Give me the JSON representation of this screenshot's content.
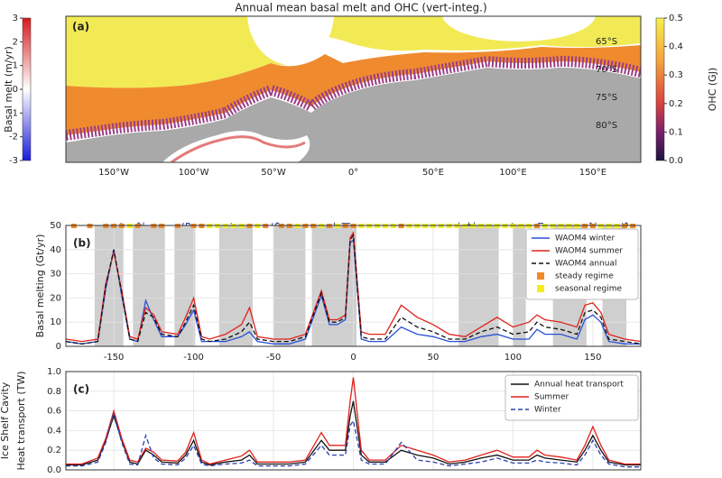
{
  "chart_data": [
    {
      "type": "map",
      "title": "Annual mean basal melt and OHC (vert-integ.)",
      "panel_label": "(a)",
      "xlim": [
        -180,
        180
      ],
      "lon_ticks": [
        {
          "value": -150,
          "label": "150°W"
        },
        {
          "value": -100,
          "label": "100°W"
        },
        {
          "value": -50,
          "label": "50°W"
        },
        {
          "value": 0,
          "label": "0°"
        },
        {
          "value": 50,
          "label": "50°E"
        },
        {
          "value": 100,
          "label": "100°E"
        },
        {
          "value": 150,
          "label": "150°E"
        }
      ],
      "lat_labels": [
        "65°S",
        "70°S",
        "75°S",
        "80°S"
      ],
      "colorbar_left": {
        "label": "Basal melt (m/yr)",
        "lim": [
          -3,
          3
        ],
        "ticks": [
          3,
          2,
          1,
          0,
          -1,
          -2,
          -3
        ]
      },
      "colorbar_right": {
        "label": "OHC (GJ)",
        "lim": [
          0,
          0.5
        ],
        "ticks": [
          0.5,
          0.4,
          0.3,
          0.2,
          0.1,
          {
            "value": 0,
            "label": "0.0"
          }
        ]
      },
      "regions": [
        {
          "lines": [
            "Sulzb."
          ],
          "lon": -147
        },
        {
          "lines": [
            "Getz"
          ],
          "lon": -133
        },
        {
          "lines": [
            "PIG"
          ],
          "lon": -104
        },
        {
          "lines": [
            "Bellings."
          ],
          "lon": -78
        },
        {
          "lines": [
            "FRIS"
          ],
          "lon": -48
        },
        {
          "lines": [
            "Brunt-",
            "Fimbul"
          ],
          "lon": -8
        },
        {
          "lines": [
            "Amery-",
            "West"
          ],
          "lon": 70
        },
        {
          "lines": [
            "Shackl."
          ],
          "lon": 98
        },
        {
          "lines": [
            "Totten"
          ],
          "lon": 117
        },
        {
          "lines": [
            "Mertz"
          ],
          "lon": 150
        },
        {
          "lines": [
            "Ross"
          ],
          "lon": 170
        }
      ]
    },
    {
      "type": "line",
      "panel_label": "(b)",
      "ylabel": "Basal melting (Gt/yr)",
      "xlim": [
        -180,
        180
      ],
      "ylim": [
        0,
        50
      ],
      "xticks": [
        -150,
        -100,
        -50,
        0,
        50,
        100,
        150
      ],
      "yticks": [
        0,
        10,
        20,
        30,
        40,
        50
      ],
      "grid": true,
      "shaded": [
        [
          -162,
          -144
        ],
        [
          -138,
          -118
        ],
        [
          -112,
          -99
        ],
        [
          -84,
          -63
        ],
        [
          -50,
          -30
        ],
        [
          -26,
          2
        ],
        [
          66,
          91
        ],
        [
          100,
          108
        ],
        [
          125,
          146
        ],
        [
          156,
          171
        ]
      ],
      "x": [
        -180,
        -170,
        -160,
        -155,
        -150,
        -145,
        -140,
        -135,
        -130,
        -125,
        -120,
        -110,
        -105,
        -100,
        -95,
        -90,
        -80,
        -70,
        -65,
        -60,
        -50,
        -40,
        -30,
        -20,
        -15,
        -10,
        -5,
        -2,
        0,
        5,
        10,
        20,
        30,
        40,
        50,
        60,
        70,
        80,
        90,
        100,
        110,
        115,
        120,
        130,
        140,
        145,
        150,
        155,
        160,
        170,
        180
      ],
      "series": [
        {
          "name": "WAOM4 winter",
          "color": "#2a4fd6",
          "style": "solid",
          "values": [
            2,
            1,
            2,
            24,
            40,
            21,
            3,
            2,
            19,
            11,
            4,
            4,
            9,
            15,
            2,
            2,
            2,
            4,
            6,
            2,
            1,
            1,
            3,
            21,
            9,
            9,
            11,
            43,
            44,
            3,
            2,
            2,
            8,
            5,
            4,
            2,
            2,
            4,
            5,
            3,
            3,
            7,
            5,
            5,
            3,
            11,
            13,
            10,
            2,
            1,
            1
          ]
        },
        {
          "name": "WAOM4 summer",
          "color": "#e0221c",
          "style": "solid",
          "values": [
            3,
            2,
            3,
            26,
            39,
            23,
            4,
            3,
            16,
            13,
            6,
            5,
            12,
            20,
            4,
            3,
            5,
            9,
            16,
            4,
            3,
            3,
            5,
            23,
            11,
            11,
            13,
            45,
            47,
            6,
            5,
            5,
            17,
            12,
            9,
            5,
            4,
            8,
            12,
            8,
            10,
            13,
            11,
            10,
            8,
            17,
            18,
            14,
            5,
            3,
            2
          ]
        },
        {
          "name": "WAOM4 annual",
          "color": "#111111",
          "style": "dashed",
          "values": [
            2,
            1,
            2,
            25,
            40,
            22,
            3,
            2,
            14,
            12,
            5,
            4,
            10,
            17,
            3,
            2,
            3,
            6,
            10,
            3,
            2,
            2,
            4,
            22,
            10,
            10,
            12,
            44,
            46,
            4,
            3,
            3,
            12,
            8,
            6,
            3,
            3,
            6,
            8,
            5,
            6,
            10,
            8,
            7,
            5,
            14,
            15,
            12,
            3,
            2,
            1
          ]
        }
      ],
      "regimes": [
        {
          "name": "steady regime",
          "color": "#f08a24",
          "x": [
            -175,
            -165,
            -155,
            -150,
            -145,
            -135,
            -125,
            -120,
            -110,
            -100,
            -95,
            -65,
            -55,
            -45,
            -40,
            -30,
            -25,
            -15,
            -5,
            0,
            30,
            115,
            145,
            150,
            170,
            175
          ]
        },
        {
          "name": "seasonal regime",
          "color": "#f2ee1e",
          "x": [
            -140,
            -90,
            -85,
            -80,
            -75,
            -70,
            -60,
            -35,
            -20,
            -10,
            5,
            10,
            15,
            20,
            25,
            35,
            40,
            45,
            50,
            55,
            60,
            65,
            70,
            75,
            80,
            85,
            90,
            95,
            100,
            105,
            110,
            120,
            125,
            130,
            135,
            140,
            155,
            160,
            165
          ]
        }
      ]
    },
    {
      "type": "line",
      "panel_label": "(c)",
      "ylabel_lines": [
        "Ice Shelf Cavity",
        "Heat transport (TW)"
      ],
      "xlim": [
        -180,
        180
      ],
      "ylim": [
        0,
        1
      ],
      "xticks": [
        -150,
        -100,
        -50,
        0,
        50,
        100,
        150
      ],
      "yticks": [
        {
          "value": 0,
          "label": "0.0"
        },
        0.2,
        0.4,
        0.6,
        0.8,
        {
          "value": 1,
          "label": "1.0"
        }
      ],
      "grid": true,
      "x": [
        -180,
        -170,
        -160,
        -155,
        -150,
        -145,
        -140,
        -135,
        -130,
        -125,
        -120,
        -110,
        -105,
        -100,
        -95,
        -90,
        -80,
        -70,
        -65,
        -60,
        -50,
        -40,
        -30,
        -20,
        -15,
        -10,
        -5,
        -2,
        0,
        5,
        10,
        20,
        30,
        40,
        50,
        60,
        70,
        80,
        90,
        100,
        110,
        115,
        120,
        130,
        140,
        145,
        150,
        155,
        160,
        170,
        180
      ],
      "series": [
        {
          "name": "Annual heat transport",
          "color": "#111111",
          "style": "solid",
          "values": [
            0.05,
            0.05,
            0.1,
            0.3,
            0.55,
            0.3,
            0.08,
            0.06,
            0.2,
            0.15,
            0.08,
            0.07,
            0.15,
            0.3,
            0.08,
            0.05,
            0.08,
            0.1,
            0.15,
            0.06,
            0.06,
            0.06,
            0.08,
            0.3,
            0.2,
            0.2,
            0.2,
            0.55,
            0.7,
            0.15,
            0.08,
            0.08,
            0.2,
            0.15,
            0.12,
            0.06,
            0.08,
            0.12,
            0.15,
            0.1,
            0.1,
            0.15,
            0.12,
            0.1,
            0.08,
            0.2,
            0.35,
            0.2,
            0.08,
            0.05,
            0.05
          ]
        },
        {
          "name": "Summer",
          "color": "#e0221c",
          "style": "solid",
          "values": [
            0.06,
            0.06,
            0.12,
            0.32,
            0.6,
            0.32,
            0.1,
            0.08,
            0.22,
            0.18,
            0.1,
            0.09,
            0.18,
            0.38,
            0.1,
            0.06,
            0.1,
            0.14,
            0.2,
            0.08,
            0.08,
            0.08,
            0.1,
            0.38,
            0.25,
            0.25,
            0.25,
            0.7,
            0.94,
            0.2,
            0.1,
            0.1,
            0.25,
            0.2,
            0.15,
            0.08,
            0.1,
            0.15,
            0.2,
            0.13,
            0.13,
            0.2,
            0.15,
            0.13,
            0.1,
            0.25,
            0.44,
            0.25,
            0.1,
            0.06,
            0.06
          ]
        },
        {
          "name": "Winter",
          "color": "#2a3fb0",
          "style": "dashed",
          "values": [
            0.04,
            0.04,
            0.08,
            0.28,
            0.58,
            0.28,
            0.06,
            0.05,
            0.35,
            0.12,
            0.06,
            0.05,
            0.12,
            0.25,
            0.06,
            0.04,
            0.06,
            0.07,
            0.1,
            0.04,
            0.04,
            0.04,
            0.06,
            0.25,
            0.15,
            0.15,
            0.15,
            0.45,
            0.5,
            0.1,
            0.06,
            0.06,
            0.28,
            0.1,
            0.08,
            0.04,
            0.06,
            0.08,
            0.12,
            0.07,
            0.07,
            0.1,
            0.08,
            0.07,
            0.05,
            0.15,
            0.3,
            0.15,
            0.06,
            0.03,
            0.03
          ]
        }
      ]
    }
  ]
}
